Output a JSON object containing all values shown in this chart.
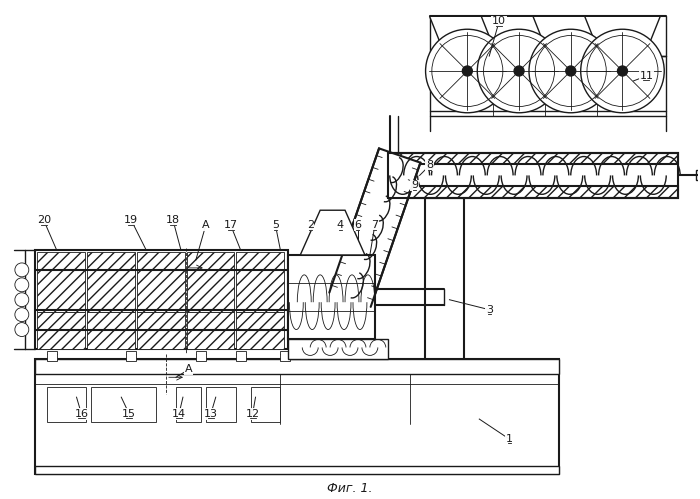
{
  "title": "Фиг. 1.",
  "bg_color": "#ffffff",
  "line_color": "#1a1a1a",
  "fig_width": 7.0,
  "fig_height": 4.99,
  "dpi": 100
}
